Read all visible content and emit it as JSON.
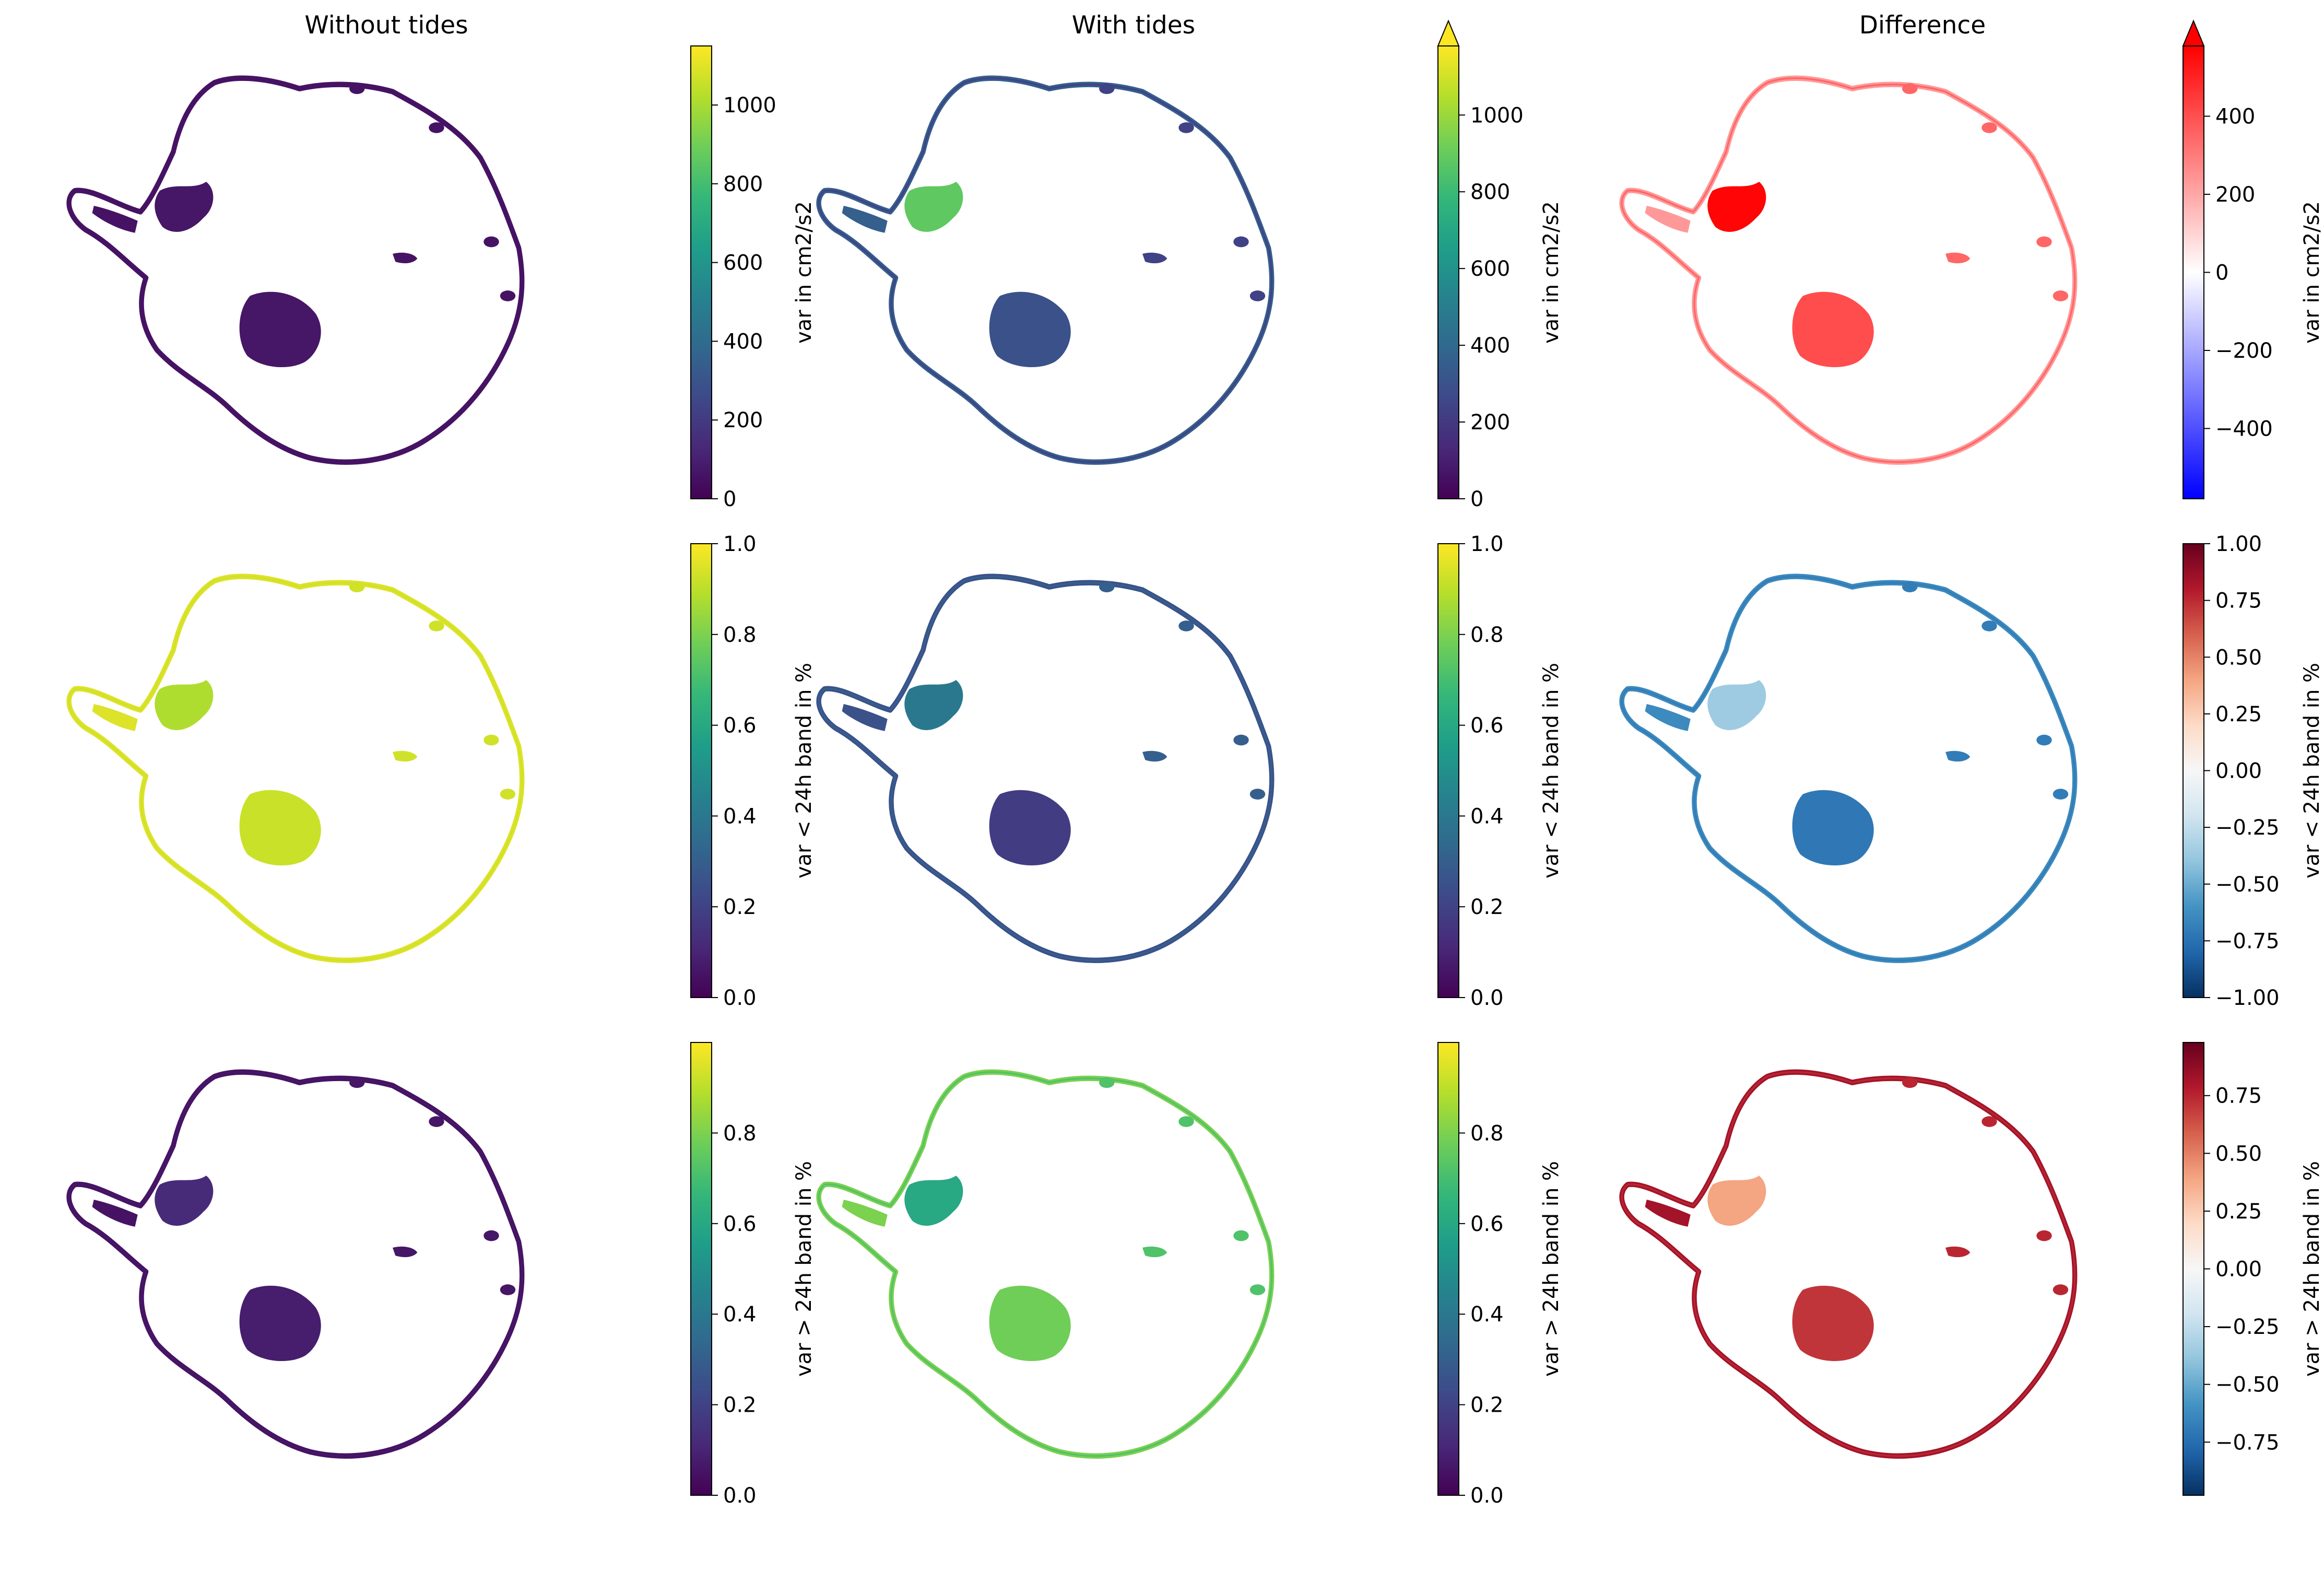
{
  "colors": {
    "viridis": [
      "#440154",
      "#482878",
      "#3e4989",
      "#31688e",
      "#26828e",
      "#1f9e89",
      "#35b779",
      "#6ece58",
      "#b5de2b",
      "#fde725"
    ],
    "bwr": [
      "#0000ff",
      "#ffffff",
      "#ff0000"
    ],
    "rdbu_r": [
      "#053061",
      "#2166ac",
      "#4393c3",
      "#92c5de",
      "#d1e5f0",
      "#f7f7f7",
      "#fddbc7",
      "#f4a582",
      "#d6604d",
      "#b2182b",
      "#67001f"
    ]
  },
  "chart_data": {
    "type": "heatmap",
    "columns": [
      "Without tides",
      "With tides",
      "Difference"
    ],
    "rows": [
      {
        "colorbar_label": "var in cm2/s2",
        "panels": [
          {
            "column": "Without tides",
            "cmap": "viridis",
            "vmin": 0,
            "vmax": 1150,
            "extend": "neither",
            "ticks": [
              0,
              200,
              400,
              600,
              800,
              1000
            ],
            "tick_labels": [
              "0",
              "200",
              "400",
              "600",
              "800",
              "1000"
            ],
            "levels": {
              "shelf": 0.05,
              "ross": 0.06,
              "ronne": 0.06,
              "coast": 0.05
            }
          },
          {
            "column": "With tides",
            "cmap": "viridis",
            "vmin": 0,
            "vmax": 1180,
            "extend": "max",
            "ticks": [
              0,
              200,
              400,
              600,
              800,
              1000
            ],
            "tick_labels": [
              "0",
              "200",
              "400",
              "600",
              "800",
              "1000"
            ],
            "levels": {
              "shelf": 0.2,
              "ross": 0.25,
              "ronne": 0.75,
              "coast": 0.3
            }
          },
          {
            "column": "Difference",
            "cmap": "bwr",
            "vmin": -580,
            "vmax": 580,
            "extend": "max",
            "ticks": [
              -400,
              -200,
              0,
              200,
              400
            ],
            "tick_labels": [
              "−400",
              "−200",
              "0",
              "200",
              "400"
            ],
            "levels": {
              "shelf": 0.8,
              "ross": 0.85,
              "ronne": 0.99,
              "coast": 0.7
            }
          }
        ]
      },
      {
        "colorbar_label": "var < 24h band in %",
        "panels": [
          {
            "column": "Without tides",
            "cmap": "viridis",
            "vmin": 0,
            "vmax": 1,
            "extend": "neither",
            "ticks": [
              0,
              0.2,
              0.4,
              0.6,
              0.8,
              1.0
            ],
            "tick_labels": [
              "0.0",
              "0.2",
              "0.4",
              "0.6",
              "0.8",
              "1.0"
            ],
            "levels": {
              "shelf": 0.93,
              "ross": 0.92,
              "ronne": 0.88,
              "coast": 0.95
            }
          },
          {
            "column": "With tides",
            "cmap": "viridis",
            "vmin": 0,
            "vmax": 1,
            "extend": "neither",
            "ticks": [
              0,
              0.2,
              0.4,
              0.6,
              0.8,
              1.0
            ],
            "tick_labels": [
              "0.0",
              "0.2",
              "0.4",
              "0.6",
              "0.8",
              "1.0"
            ],
            "levels": {
              "shelf": 0.3,
              "ross": 0.18,
              "ronne": 0.4,
              "coast": 0.25
            }
          },
          {
            "column": "Difference",
            "cmap": "rdbu_r",
            "vmin": -1,
            "vmax": 1,
            "extend": "neither",
            "ticks": [
              -1.0,
              -0.75,
              -0.5,
              -0.25,
              0.0,
              0.25,
              0.5,
              0.75,
              1.0
            ],
            "tick_labels": [
              "−1.00",
              "−0.75",
              "−0.50",
              "−0.25",
              "0.00",
              "0.25",
              "0.50",
              "0.75",
              "1.00"
            ],
            "levels": {
              "shelf": 0.15,
              "ross": 0.14,
              "ronne": 0.32,
              "coast": 0.18
            }
          }
        ]
      },
      {
        "colorbar_label": "var > 24h band in %",
        "panels": [
          {
            "column": "Without tides",
            "cmap": "viridis",
            "vmin": 0,
            "vmax": 1,
            "extend": "neither",
            "ticks": [
              0,
              0.2,
              0.4,
              0.6,
              0.8
            ],
            "tick_labels": [
              "0.0",
              "0.2",
              "0.4",
              "0.6",
              "0.8"
            ],
            "levels": {
              "shelf": 0.06,
              "ross": 0.08,
              "ronne": 0.12,
              "coast": 0.05
            }
          },
          {
            "column": "With tides",
            "cmap": "viridis",
            "vmin": 0,
            "vmax": 1,
            "extend": "neither",
            "ticks": [
              0,
              0.2,
              0.4,
              0.6,
              0.8
            ],
            "tick_labels": [
              "0.0",
              "0.2",
              "0.4",
              "0.6",
              "0.8"
            ],
            "levels": {
              "shelf": 0.72,
              "ross": 0.78,
              "ronne": 0.6,
              "coast": 0.8
            }
          },
          {
            "column": "Difference",
            "cmap": "rdbu_r",
            "vmin": -0.98,
            "vmax": 0.98,
            "extend": "neither",
            "ticks": [
              -0.75,
              -0.5,
              -0.25,
              0.0,
              0.25,
              0.5,
              0.75
            ],
            "tick_labels": [
              "−0.75",
              "−0.50",
              "−0.25",
              "0.00",
              "0.25",
              "0.50",
              "0.75"
            ],
            "levels": {
              "shelf": 0.88,
              "ross": 0.86,
              "ronne": 0.7,
              "coast": 0.92
            }
          }
        ]
      }
    ]
  }
}
